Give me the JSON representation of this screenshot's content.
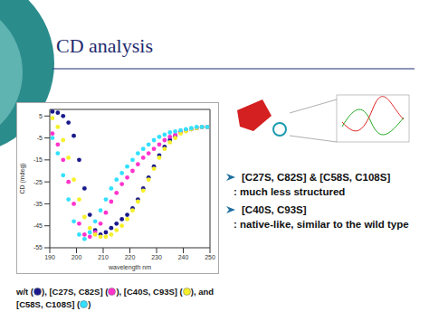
{
  "title": "CD analysis",
  "bullets": [
    {
      "head": "[C27S, C82S] & [C58S, C108S]",
      "text": ": much less structured"
    },
    {
      "head": "[C40S, C93S]",
      "text": ": native-like, similar to the wild type"
    }
  ],
  "caption": [
    "w/t (",
    "), [C27S, C82S] (",
    "), [C40S, C93S] (",
    "), and [C58S, C108S] (",
    ")"
  ],
  "chart_data": {
    "type": "scatter",
    "x_label": "wavelength nm",
    "y_label": "CD (mdeg)",
    "xlim": [
      190,
      250
    ],
    "xticks": [
      190,
      200,
      210,
      220,
      230,
      240,
      250
    ],
    "ylim": [
      -55,
      8
    ],
    "yticks": [
      5,
      -5,
      -15,
      -25,
      -35,
      -45,
      -55
    ],
    "grid": false,
    "marker": "circle",
    "line_style": "none",
    "x": [
      191,
      193,
      195,
      197,
      199,
      201,
      203,
      205,
      207,
      209,
      211,
      213,
      215,
      217,
      219,
      221,
      223,
      225,
      227,
      229,
      231,
      233,
      235,
      237,
      239,
      241,
      243,
      245,
      247,
      249
    ],
    "series": [
      {
        "name": "w/t",
        "color": "#1a1a8c",
        "values": [
          7,
          6.5,
          5,
          2,
          -4,
          -15,
          -28,
          -40,
          -47,
          -49,
          -48,
          -46,
          -44,
          -42,
          -40,
          -37,
          -33,
          -28,
          -23,
          -18,
          -13,
          -9,
          -6,
          -4,
          -2.5,
          -1.5,
          -1,
          -0.5,
          0,
          0
        ]
      },
      {
        "name": "[C27S, C82S]",
        "color": "#ff33cc",
        "values": [
          -3,
          -8,
          -15,
          -25,
          -35,
          -44,
          -49,
          -50,
          -48,
          -44,
          -39,
          -34,
          -30,
          -26,
          -23,
          -20,
          -17,
          -14,
          -12,
          -10,
          -8,
          -6,
          -4.5,
          -3.5,
          -2.5,
          -1.5,
          -1,
          -0.5,
          0,
          0
        ]
      },
      {
        "name": "[C40S, C93S]",
        "color": "#f5f02a",
        "values": [
          4,
          0,
          -6,
          -14,
          -24,
          -33,
          -41,
          -46,
          -49,
          -50,
          -50,
          -49,
          -47,
          -45,
          -42,
          -38,
          -34,
          -29,
          -24,
          -19,
          -14,
          -10,
          -7,
          -5,
          -3,
          -2,
          -1,
          -0.5,
          0,
          0
        ]
      },
      {
        "name": "[C58S, C108S]",
        "color": "#33e0ff",
        "values": [
          -5,
          -12,
          -22,
          -33,
          -43,
          -49,
          -51,
          -48,
          -43,
          -38,
          -33,
          -28,
          -24,
          -21,
          -18,
          -15,
          -12,
          -10,
          -8,
          -6,
          -4.5,
          -3.5,
          -2.5,
          -2,
          -1.5,
          -1,
          -0.5,
          0,
          0,
          0
        ]
      }
    ]
  }
}
